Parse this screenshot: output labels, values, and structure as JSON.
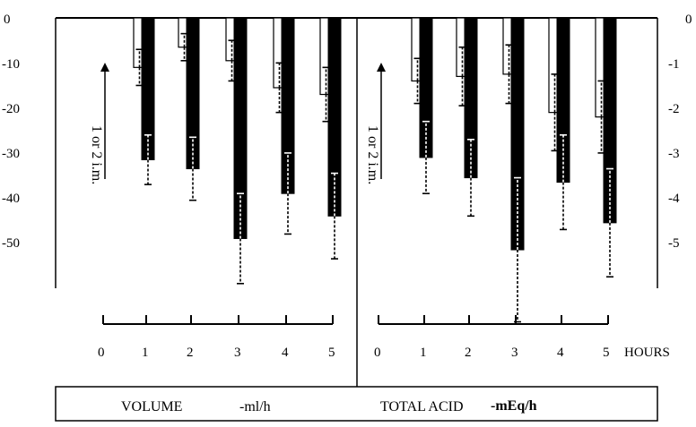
{
  "chart_data": [
    {
      "type": "bar",
      "title": "VOLUME",
      "unit": "-ml/h",
      "categories": [
        "1",
        "2",
        "3",
        "4",
        "5"
      ],
      "series": [
        {
          "values": [
            -11,
            -6.5,
            -9.5,
            -15.5,
            -17
          ],
          "errors": [
            4,
            3,
            4.5,
            5.5,
            6
          ]
        },
        {
          "values": [
            -31.5,
            -33.5,
            -49,
            -39,
            -44
          ],
          "errors": [
            5.5,
            7,
            10,
            9,
            9.5
          ]
        }
      ],
      "ylim": [
        -60,
        0
      ],
      "yticks": [
        "0",
        "-10",
        "-20",
        "-30",
        "-40",
        "-50"
      ],
      "xticks": [
        "0",
        "1",
        "2",
        "3",
        "4",
        "5"
      ],
      "annotation": "1 or 2 i.m."
    },
    {
      "type": "bar",
      "title": "TOTAL ACID",
      "unit": "-mEq/h",
      "categories": [
        "1",
        "2",
        "3",
        "4",
        "5"
      ],
      "series": [
        {
          "values": [
            -14,
            -13,
            -12.5,
            -21,
            -22
          ],
          "errors": [
            5,
            6.5,
            6.5,
            8.5,
            8
          ]
        },
        {
          "values": [
            -31,
            -35.5,
            -51.5,
            -36.5,
            -45.5
          ],
          "errors": [
            8,
            8.5,
            16,
            10.5,
            12
          ]
        }
      ],
      "ylim": [
        -60,
        0
      ],
      "yticks": [
        "0",
        "-1",
        "-2",
        "-3",
        "-4",
        "-5"
      ],
      "xticks": [
        "0",
        "1",
        "2",
        "3",
        "4",
        "5"
      ],
      "xlabel": "HOURS",
      "annotation": "1 or 2 i.m."
    }
  ],
  "colors": {
    "open_bar": "#ffffff",
    "filled_bar": "#000000",
    "line": "#000000"
  }
}
